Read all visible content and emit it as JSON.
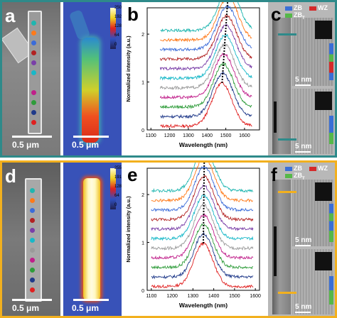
{
  "colors": {
    "top_border": "#2e8a8a",
    "bottom_border": "#f2b01e",
    "zb": "#3a6fd6",
    "wz": "#d42a2a",
    "zbt": "#56b849",
    "dot_colors": [
      "#1fb6b0",
      "#ff7a1a",
      "#3b6cd9",
      "#b22222",
      "#7a3fa8",
      "#18b8c8",
      "#9a9a9a",
      "#c01f8a",
      "#2e9c3a",
      "#203a8a",
      "#e02020"
    ]
  },
  "top_row": {
    "panel_a": {
      "letter": "a",
      "scale_label": "0.5 μm",
      "dots": 11
    },
    "panel_a_map": {
      "scale_label": "0.5 μm",
      "colorbar_ticks": [
        "250",
        "192",
        "128",
        "64",
        "0"
      ]
    },
    "panel_b": {
      "letter": "b"
    },
    "panel_c": {
      "letter": "c",
      "legend": {
        "zb": "ZB",
        "wz": "WZ",
        "zbt": "ZB",
        "zbt_sub": "T"
      },
      "scale_label_1": "5 nm",
      "scale_label_2": "5 nm"
    }
  },
  "bottom_row": {
    "panel_d": {
      "letter": "d",
      "scale_label": "0.5 μm",
      "dots": 11
    },
    "panel_d_map": {
      "scale_label": "0.5 μm",
      "colorbar_ticks": [
        "255",
        "191",
        "128",
        "64",
        "0"
      ]
    },
    "panel_e": {
      "letter": "e"
    },
    "panel_f": {
      "letter": "f",
      "legend": {
        "zb": "ZB",
        "wz": "WZ",
        "zbt": "ZB",
        "zbt_sub": "T"
      },
      "scale_label_1": "5 nm",
      "scale_label_2": "5 nm"
    }
  },
  "chart_data": [
    {
      "type": "line",
      "panel": "b",
      "xlabel": "Wavelength (nm)",
      "ylabel": "Normalized intensity (a.u.)",
      "xlim": [
        1080,
        1680
      ],
      "ylim": [
        0,
        2.55
      ],
      "x_ticks": [
        1100,
        1200,
        1300,
        1400,
        1500,
        1600
      ],
      "y_ticks": [
        0,
        1,
        2
      ],
      "x_range": [
        1150,
        1640
      ],
      "peak_center_start": 1480,
      "peak_center_end": 1515,
      "peak_width": 75,
      "offset_step": 0.2,
      "series_count": 11,
      "series_colors": [
        "#e02020",
        "#203a8a",
        "#2e9c3a",
        "#c01f8a",
        "#9a9a9a",
        "#18b8c8",
        "#7a3fa8",
        "#b22222",
        "#3b6cd9",
        "#ff7a1a",
        "#1fb6b0"
      ]
    },
    {
      "type": "line",
      "panel": "e",
      "xlabel": "Wavelength (nm)",
      "ylabel": "Normalized intensity (a.u.)",
      "xlim": [
        1080,
        1620
      ],
      "ylim": [
        0,
        2.55
      ],
      "x_ticks": [
        1100,
        1200,
        1300,
        1400,
        1500,
        1600
      ],
      "y_ticks": [
        0,
        1,
        2
      ],
      "x_range": [
        1100,
        1590
      ],
      "peak_center_start": 1350,
      "peak_center_end": 1355,
      "peak_width": 65,
      "offset_step": 0.2,
      "series_count": 11,
      "series_colors": [
        "#e02020",
        "#203a8a",
        "#2e9c3a",
        "#c01f8a",
        "#9a9a9a",
        "#18b8c8",
        "#7a3fa8",
        "#b22222",
        "#3b6cd9",
        "#ff7a1a",
        "#1fb6b0"
      ]
    }
  ]
}
